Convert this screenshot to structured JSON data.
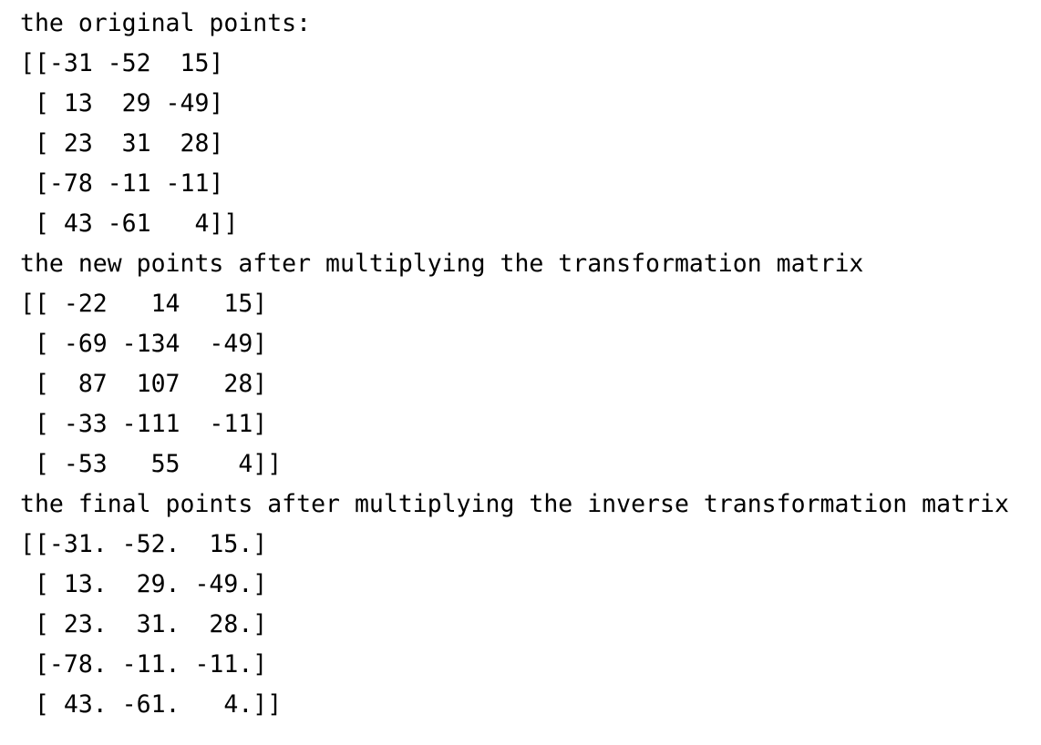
{
  "console": {
    "lines": [
      "the original points:",
      "[[-31 -52  15]",
      " [ 13  29 -49]",
      " [ 23  31  28]",
      " [-78 -11 -11]",
      " [ 43 -61   4]]",
      "the new points after multiplying the transformation matrix",
      "[[ -22   14   15]",
      " [ -69 -134  -49]",
      " [  87  107   28]",
      " [ -33 -111  -11]",
      " [ -53   55    4]]",
      "the final points after multiplying the inverse transformation matrix",
      "[[-31. -52.  15.]",
      " [ 13.  29. -49.]",
      " [ 23.  31.  28.]",
      " [-78. -11. -11.]",
      " [ 43. -61.   4.]]"
    ]
  }
}
